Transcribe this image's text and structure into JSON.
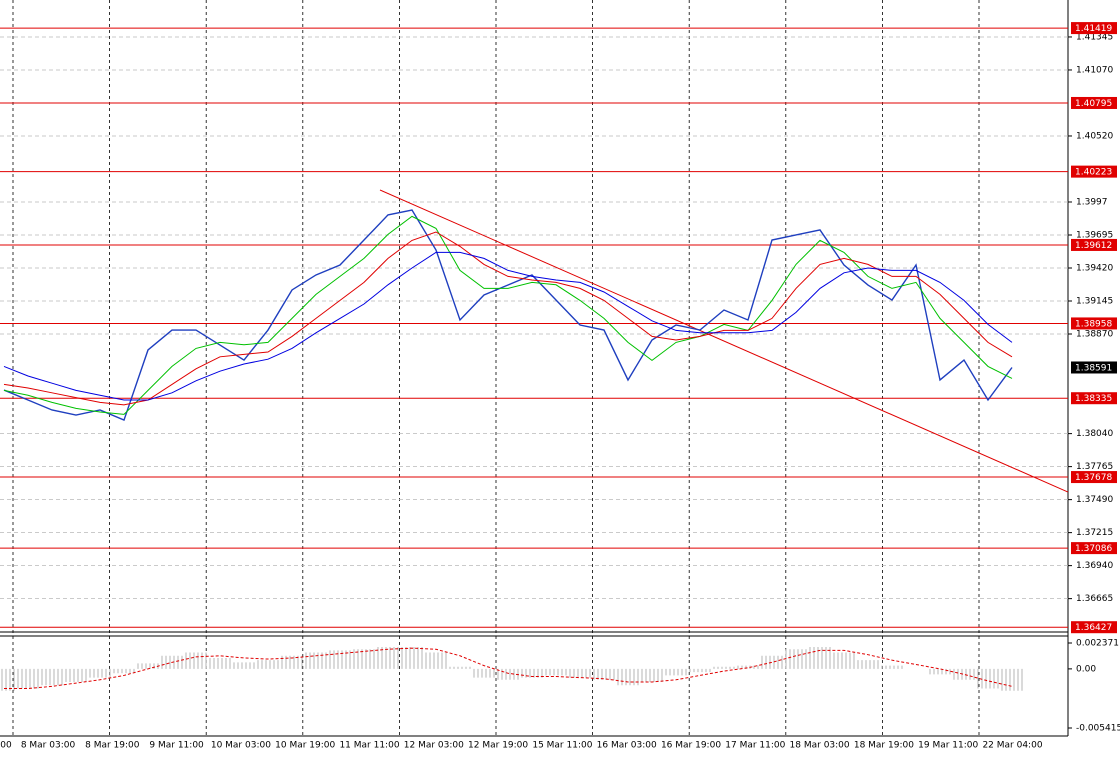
{
  "chart_data": [
    {
      "type": "line",
      "ylim": [
        1.36387,
        1.41653
      ],
      "yticks": [
        1.41345,
        {
          "value": 1.4107,
          "label": "1.41070"
        },
        {
          "value": 1.4052,
          "label": "1.40520"
        },
        1.3997,
        1.39695,
        {
          "value": 1.3942,
          "label": "1.39420"
        },
        1.39145,
        {
          "value": 1.3887,
          "label": "1.38870"
        },
        {
          "value": 1.3804,
          "label": "1.38040"
        },
        1.37765,
        {
          "value": 1.3749,
          "label": "1.37490"
        },
        1.37215,
        {
          "value": 1.3694,
          "label": "1.36940"
        },
        1.36665
      ],
      "grid": true,
      "series": [
        {
          "color": "#1f3fbf",
          "values": [
            1.38403,
            1.3832,
            1.38237,
            1.38195,
            1.38237,
            1.38153,
            1.38737,
            1.38903,
            1.38903,
            1.38778,
            1.38653,
            1.38903,
            1.39237,
            1.39362,
            1.39445,
            1.39653,
            1.39862,
            1.39903,
            1.3957,
            1.38987,
            1.39195,
            1.39278,
            1.39362,
            1.39153,
            1.38945,
            1.38903,
            1.38487,
            1.3882,
            1.38945,
            1.38903,
            1.3907,
            1.38987,
            1.39653,
            1.39695,
            1.39737,
            1.39445,
            1.39278,
            1.39153,
            1.39445,
            1.38487,
            1.38653,
            1.3832,
            1.38591
          ]
        },
        {
          "color": "#00c000",
          "values": [
            1.384,
            1.3836,
            1.383,
            1.3825,
            1.3822,
            1.382,
            1.384,
            1.386,
            1.3875,
            1.388,
            1.3878,
            1.388,
            1.39,
            1.392,
            1.3935,
            1.395,
            1.397,
            1.3985,
            1.3975,
            1.394,
            1.3925,
            1.3925,
            1.393,
            1.3928,
            1.3915,
            1.39,
            1.388,
            1.3865,
            1.388,
            1.3885,
            1.3895,
            1.389,
            1.3915,
            1.3945,
            1.3965,
            1.3955,
            1.3935,
            1.3925,
            1.393,
            1.39,
            1.388,
            1.386,
            1.385
          ]
        },
        {
          "color": "#e00000",
          "values": [
            1.3845,
            1.3842,
            1.3838,
            1.3834,
            1.383,
            1.3828,
            1.3832,
            1.3845,
            1.3858,
            1.3868,
            1.387,
            1.3872,
            1.3885,
            1.39,
            1.3915,
            1.393,
            1.395,
            1.3965,
            1.3972,
            1.396,
            1.3945,
            1.3935,
            1.3932,
            1.393,
            1.3925,
            1.3915,
            1.39,
            1.3885,
            1.3882,
            1.3885,
            1.389,
            1.389,
            1.39,
            1.3925,
            1.3945,
            1.395,
            1.3945,
            1.3935,
            1.3935,
            1.392,
            1.39,
            1.388,
            1.3868
          ]
        },
        {
          "color": "#0000e0",
          "values": [
            1.386,
            1.3852,
            1.3846,
            1.384,
            1.3836,
            1.3832,
            1.3832,
            1.3838,
            1.3848,
            1.3856,
            1.3862,
            1.3866,
            1.3875,
            1.3888,
            1.39,
            1.3912,
            1.3928,
            1.3942,
            1.3955,
            1.3955,
            1.395,
            1.394,
            1.3935,
            1.3932,
            1.393,
            1.3922,
            1.391,
            1.3898,
            1.389,
            1.3888,
            1.3888,
            1.3888,
            1.389,
            1.3905,
            1.3925,
            1.3938,
            1.3942,
            1.394,
            1.394,
            1.393,
            1.3915,
            1.3895,
            1.388
          ]
        }
      ],
      "levels": [
        1.41419,
        1.40795,
        1.40223,
        1.39612,
        1.38958,
        1.38335,
        1.37678,
        1.37086,
        1.36427
      ],
      "level_color": "#e00000",
      "current_price": 1.38591,
      "trendline": {
        "color": "#e00000",
        "values": [
          1.4007,
          1.37553
        ]
      },
      "x_labels": [
        "00",
        "8 Mar 03:00",
        "8 Mar 19:00",
        "9 Mar 11:00",
        "10 Mar 03:00",
        "10 Mar 19:00",
        "11 Mar 11:00",
        "12 Mar 03:00",
        "12 Mar 19:00",
        "15 Mar 11:00",
        "16 Mar 03:00",
        "16 Mar 19:00",
        "17 Mar 11:00",
        "18 Mar 03:00",
        "18 Mar 19:00",
        "19 Mar 11:00",
        "22 Mar 04:00"
      ]
    },
    {
      "type": "bar",
      "ylim": [
        -0.005415,
        0.002371
      ],
      "yticks": [
        0.002371,
        {
          "value": 0,
          "label": "0.00"
        },
        -0.005415
      ],
      "color": "#b4b4b4",
      "values": [
        -0.002,
        -0.0018,
        -0.0015,
        -0.0012,
        -0.0008,
        -0.0004,
        0.0005,
        0.0012,
        0.0015,
        0.001,
        0.0006,
        0.0008,
        0.0012,
        0.0015,
        0.0017,
        0.0018,
        0.002,
        0.002,
        0.0015,
        0.0002,
        -0.0008,
        -0.001,
        -0.0008,
        -0.0006,
        -0.0008,
        -0.001,
        -0.0015,
        -0.0012,
        -0.0006,
        -0.0003,
        0.0002,
        0.0003,
        0.0012,
        0.0018,
        0.002,
        0.0015,
        0.0008,
        0.0003,
        0,
        -0.0005,
        -0.001,
        -0.0018,
        -0.002
      ],
      "signal": {
        "color": "#e00000",
        "values": [
          -0.0018,
          -0.0018,
          -0.0016,
          -0.0013,
          -0.001,
          -0.0006,
          0,
          0.0006,
          0.0011,
          0.0012,
          0.001,
          0.0009,
          0.001,
          0.0012,
          0.0014,
          0.0016,
          0.0018,
          0.0019,
          0.0018,
          0.0012,
          0.0003,
          -0.0004,
          -0.0007,
          -0.0007,
          -0.0008,
          -0.0009,
          -0.0012,
          -0.0012,
          -0.001,
          -0.0006,
          -0.0002,
          0.0001,
          0.0006,
          0.0012,
          0.0017,
          0.0017,
          0.0013,
          0.0008,
          0.0004,
          0,
          -0.0005,
          -0.0011,
          -0.0016
        ]
      }
    }
  ]
}
